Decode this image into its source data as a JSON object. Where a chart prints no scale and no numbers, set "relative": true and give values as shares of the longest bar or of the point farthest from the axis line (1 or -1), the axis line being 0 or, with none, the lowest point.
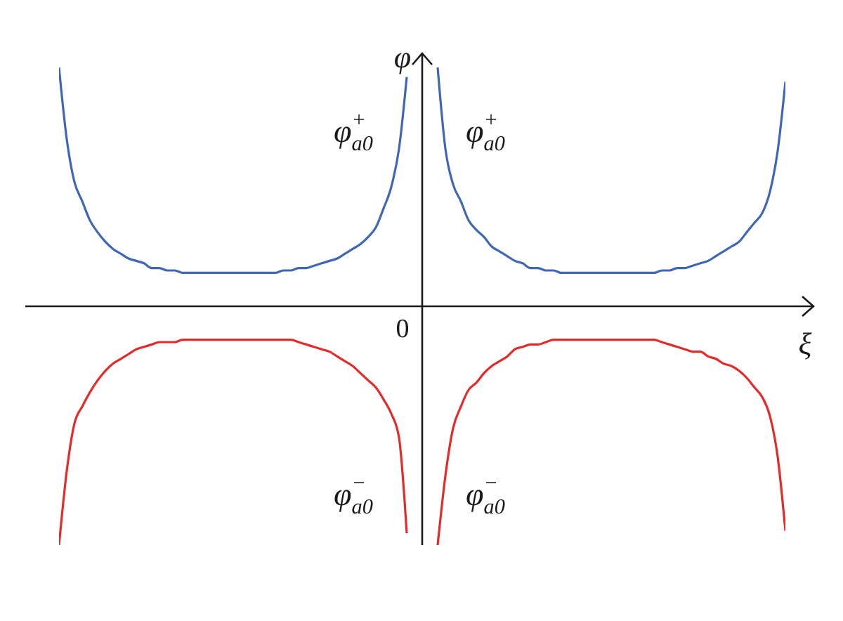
{
  "chart_data": {
    "type": "line",
    "relative": true,
    "xlabel": "ξ",
    "ylabel": "φ",
    "annotations": [
      "0"
    ],
    "categories": [
      null,
      null,
      null,
      null,
      null,
      null,
      null,
      null,
      null,
      null,
      null,
      null,
      null,
      null,
      null,
      null,
      null,
      null,
      null,
      null,
      null,
      null,
      null,
      null,
      null,
      null,
      null,
      null,
      null,
      null,
      null,
      null,
      null,
      null,
      null,
      null,
      null,
      null,
      null,
      null,
      null,
      null,
      null,
      null,
      null,
      null,
      null,
      null,
      null,
      null,
      null,
      null,
      null,
      null,
      null,
      null,
      null,
      null,
      null,
      null,
      null,
      null,
      null,
      null,
      null,
      null,
      null,
      null,
      null,
      null,
      null,
      null,
      null,
      null,
      null,
      null,
      null,
      null,
      null,
      null,
      null,
      null,
      null,
      null,
      null,
      null,
      null,
      null,
      null,
      null,
      null,
      null,
      null,
      null,
      null
    ],
    "series": [
      {
        "name": "φ$_{a0}$$^{+}$",
        "color": "#3f67b5",
        "values": [
          1,
          0.7,
          0.52,
          0.44,
          0.36,
          0.31,
          0.27,
          0.24,
          0.22,
          0.2,
          0.19,
          0.18,
          0.16,
          0.16,
          0.15,
          0.15,
          0.14,
          0.14,
          0.14,
          0.14,
          0.14,
          0.14,
          0.14,
          0.14,
          0.14,
          0.14,
          0.14,
          0.14,
          0.14,
          0.15,
          0.15,
          0.16,
          0.16,
          0.17,
          0.18,
          0.19,
          0.2,
          0.22,
          0.24,
          0.26,
          0.29,
          0.33,
          0.41,
          0.5,
          0.66,
          0.96,
          null,
          null,
          null,
          null,
          null,
          null,
          null,
          null,
          null,
          null,
          null,
          null,
          null,
          null,
          null,
          null,
          null,
          null,
          null,
          null,
          null,
          null,
          null,
          null,
          null,
          null,
          null,
          null,
          null,
          null,
          null,
          null,
          null,
          null,
          null,
          null,
          null,
          null,
          null,
          null,
          null,
          null,
          null,
          null,
          null,
          null,
          null,
          null,
          null
        ]
      },
      {
        "name": "φ$_{a0}$$^{+}$",
        "color": "#3f67b5",
        "values": [
          null,
          null,
          null,
          null,
          null,
          null,
          null,
          null,
          null,
          null,
          null,
          null,
          null,
          null,
          null,
          null,
          null,
          null,
          null,
          null,
          null,
          null,
          null,
          null,
          null,
          null,
          null,
          null,
          null,
          null,
          null,
          null,
          null,
          null,
          null,
          null,
          null,
          null,
          null,
          null,
          null,
          null,
          null,
          null,
          null,
          null,
          null,
          null,
          null,
          1,
          0.66,
          0.51,
          0.44,
          0.36,
          0.32,
          0.29,
          0.25,
          0.23,
          0.21,
          0.19,
          0.18,
          0.16,
          0.16,
          0.15,
          0.15,
          0.14,
          0.14,
          0.14,
          0.14,
          0.14,
          0.14,
          0.14,
          0.14,
          0.14,
          0.14,
          0.14,
          0.14,
          0.14,
          0.15,
          0.15,
          0.16,
          0.16,
          0.17,
          0.18,
          0.19,
          0.21,
          0.23,
          0.25,
          0.27,
          0.31,
          0.35,
          0.39,
          0.48,
          0.65,
          0.94
        ]
      },
      {
        "name": "φ$_{a0}$$^{−}$",
        "color": "#e52a2a",
        "values": [
          -1,
          -0.69,
          -0.49,
          -0.42,
          -0.36,
          -0.31,
          -0.27,
          -0.24,
          -0.22,
          -0.2,
          -0.18,
          -0.17,
          -0.16,
          -0.15,
          -0.15,
          -0.15,
          -0.14,
          -0.14,
          -0.14,
          -0.14,
          -0.14,
          -0.14,
          -0.14,
          -0.14,
          -0.14,
          -0.14,
          -0.14,
          -0.14,
          -0.14,
          -0.14,
          -0.14,
          -0.15,
          -0.16,
          -0.17,
          -0.18,
          -0.19,
          -0.21,
          -0.23,
          -0.25,
          -0.28,
          -0.31,
          -0.34,
          -0.39,
          -0.45,
          -0.55,
          -0.95,
          null,
          null,
          null,
          null,
          null,
          null,
          null,
          null,
          null,
          null,
          null,
          null,
          null,
          null,
          null,
          null,
          null,
          null,
          null,
          null,
          null,
          null,
          null,
          null,
          null,
          null,
          null,
          null,
          null,
          null,
          null,
          null,
          null,
          null,
          null,
          null,
          null,
          null,
          null,
          null,
          null,
          null,
          null,
          null,
          null,
          null,
          null,
          null,
          null
        ]
      },
      {
        "name": "φ$_{a0}$$^{−}$",
        "color": "#e52a2a",
        "values": [
          null,
          null,
          null,
          null,
          null,
          null,
          null,
          null,
          null,
          null,
          null,
          null,
          null,
          null,
          null,
          null,
          null,
          null,
          null,
          null,
          null,
          null,
          null,
          null,
          null,
          null,
          null,
          null,
          null,
          null,
          null,
          null,
          null,
          null,
          null,
          null,
          null,
          null,
          null,
          null,
          null,
          null,
          null,
          null,
          null,
          null,
          null,
          null,
          null,
          -1,
          -0.71,
          -0.51,
          -0.42,
          -0.35,
          -0.32,
          -0.28,
          -0.25,
          -0.23,
          -0.21,
          -0.18,
          -0.17,
          -0.16,
          -0.16,
          -0.15,
          -0.14,
          -0.14,
          -0.14,
          -0.14,
          -0.14,
          -0.14,
          -0.14,
          -0.14,
          -0.14,
          -0.14,
          -0.14,
          -0.14,
          -0.14,
          -0.14,
          -0.15,
          -0.16,
          -0.17,
          -0.18,
          -0.19,
          -0.19,
          -0.21,
          -0.22,
          -0.24,
          -0.25,
          -0.27,
          -0.3,
          -0.34,
          -0.38,
          -0.46,
          -0.63,
          -0.94
        ]
      }
    ]
  }
}
